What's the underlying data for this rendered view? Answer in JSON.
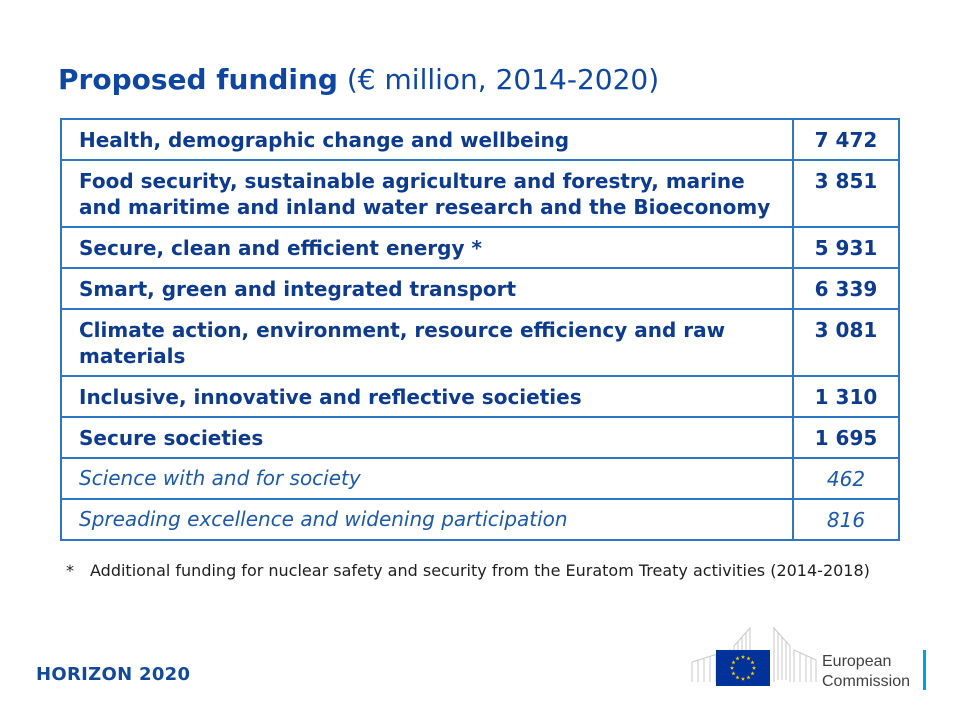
{
  "title": {
    "bold": "Proposed funding",
    "light": "(€ million, 2014-2020)"
  },
  "table": {
    "rows": [
      {
        "label": "Health, demographic change and wellbeing",
        "value": "7 472",
        "style": "strong"
      },
      {
        "label": "Food security, sustainable agriculture and forestry, marine and maritime and inland water research and the Bioeconomy",
        "value": "3 851",
        "style": "strong"
      },
      {
        "label": "Secure, clean and efficient energy *",
        "value": "5 931",
        "style": "strong"
      },
      {
        "label": "Smart, green and integrated transport",
        "value": "6 339",
        "style": "strong"
      },
      {
        "label": "Climate action, environment, resource efficiency  and raw materials",
        "value": "3 081",
        "style": "strong"
      },
      {
        "label": "Inclusive, innovative and reflective societies",
        "value": "1 310",
        "style": "strong"
      },
      {
        "label": "Secure societies",
        "value": "1 695",
        "style": "strong"
      },
      {
        "label": "Science with and for society",
        "value": "462",
        "style": "italic"
      },
      {
        "label": "Spreading excellence and widening participation",
        "value": "816",
        "style": "italic"
      }
    ]
  },
  "footnote": {
    "mark": "*",
    "text": "Additional funding for nuclear safety and security from the Euratom Treaty activities (2014-2018)"
  },
  "footer": {
    "program": "HORIZON 2020",
    "logo_line1": "European",
    "logo_line2": "Commission",
    "logo_icon": "eu-flag-icon"
  },
  "colors": {
    "title": "#0e47a1",
    "table_border": "#2f77c4",
    "table_text": "#0d3b8e",
    "eu_blue": "#003399",
    "eu_star": "#ffcc00",
    "ec_accent": "#00a1e4"
  }
}
